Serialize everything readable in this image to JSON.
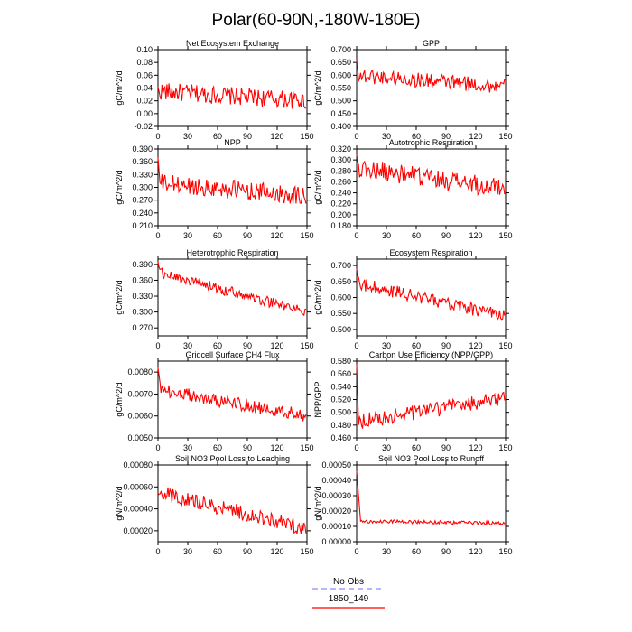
{
  "title": "Polar(60-90N,-180W-180E)",
  "legend": {
    "items": [
      {
        "label": "No Obs",
        "color": "#8c8cff",
        "style": "dashed"
      },
      {
        "label": "1850_149",
        "color": "#ff0000",
        "style": "solid"
      }
    ]
  },
  "chart_data": [
    {
      "type": "line",
      "title": "Net Ecosystem Exchange",
      "ylabel": "gC/m^2/d",
      "xlim": [
        0,
        150
      ],
      "ylim": [
        -0.02,
        0.1
      ],
      "xticks": [
        0,
        30,
        60,
        90,
        120,
        150
      ],
      "yticks": [
        "-0.02",
        "0.00",
        "0.02",
        "0.04",
        "0.06",
        "0.08",
        "0.10"
      ],
      "series": [
        {
          "name": "1850_149",
          "color": "#ff0000",
          "y0": 0.035,
          "trend": -0.0001,
          "noise": 0.014,
          "spike_start": 0,
          "spike_len": 0
        }
      ]
    },
    {
      "type": "line",
      "title": "GPP",
      "ylabel": "gC/m^2/d",
      "xlim": [
        0,
        150
      ],
      "ylim": [
        0.4,
        0.7
      ],
      "xticks": [
        0,
        30,
        60,
        90,
        120,
        150
      ],
      "yticks": [
        "0.400",
        "0.450",
        "0.500",
        "0.550",
        "0.600",
        "0.650",
        "0.700"
      ],
      "series": [
        {
          "name": "1850_149",
          "color": "#ff0000",
          "y0": 0.6,
          "trend": -0.0003,
          "noise": 0.03,
          "spike_start": 0.66,
          "spike_len": 2
        }
      ]
    },
    {
      "type": "line",
      "title": "NPP",
      "ylabel": "gC/m^2/d",
      "xlim": [
        0,
        150
      ],
      "ylim": [
        0.21,
        0.39
      ],
      "xticks": [
        0,
        30,
        60,
        90,
        120,
        150
      ],
      "yticks": [
        "0.210",
        "0.240",
        "0.270",
        "0.300",
        "0.330",
        "0.360",
        "0.390"
      ],
      "series": [
        {
          "name": "1850_149",
          "color": "#ff0000",
          "y0": 0.31,
          "trend": -0.0002,
          "noise": 0.022,
          "spike_start": 0.37,
          "spike_len": 2
        }
      ]
    },
    {
      "type": "line",
      "title": "Autotrophic Respiration",
      "ylabel": "gC/m^2/d",
      "xlim": [
        0,
        150
      ],
      "ylim": [
        0.18,
        0.32
      ],
      "xticks": [
        0,
        30,
        60,
        90,
        120,
        150
      ],
      "yticks": [
        "0.180",
        "0.200",
        "0.220",
        "0.240",
        "0.260",
        "0.280",
        "0.300",
        "0.320"
      ],
      "series": [
        {
          "name": "1850_149",
          "color": "#ff0000",
          "y0": 0.285,
          "trend": -0.00025,
          "noise": 0.018,
          "spike_start": 0.31,
          "spike_len": 2
        }
      ]
    },
    {
      "type": "line",
      "title": "Heterotrophic Respiration",
      "ylabel": "gC/m^2/d",
      "xlim": [
        0,
        150
      ],
      "ylim": [
        0.255,
        0.4
      ],
      "xticks": [
        0,
        30,
        60,
        90,
        120,
        150
      ],
      "yticks": [
        "0.270",
        "0.300",
        "0.330",
        "0.360",
        "0.390"
      ],
      "series": [
        {
          "name": "1850_149",
          "color": "#ff0000",
          "y0": 0.375,
          "trend": -0.0005,
          "noise": 0.01,
          "spike_start": 0.395,
          "spike_len": 2
        }
      ]
    },
    {
      "type": "line",
      "title": "Ecosystem Respiration",
      "ylabel": "gC/m^2/d",
      "xlim": [
        0,
        150
      ],
      "ylim": [
        0.48,
        0.72
      ],
      "xticks": [
        0,
        30,
        60,
        90,
        120,
        150
      ],
      "yticks": [
        "0.500",
        "0.550",
        "0.600",
        "0.650",
        "0.700"
      ],
      "series": [
        {
          "name": "1850_149",
          "color": "#ff0000",
          "y0": 0.645,
          "trend": -0.0007,
          "noise": 0.02,
          "spike_start": 0.69,
          "spike_len": 2
        }
      ]
    },
    {
      "type": "line",
      "title": "Gridcell Surface CH4 Flux",
      "ylabel": "gC/m^2/d",
      "xlim": [
        0,
        150
      ],
      "ylim": [
        0.005,
        0.0085
      ],
      "xticks": [
        0,
        30,
        60,
        90,
        120,
        150
      ],
      "yticks": [
        "0.0050",
        "0.0060",
        "0.0070",
        "0.0080"
      ],
      "series": [
        {
          "name": "1850_149",
          "color": "#ff0000",
          "y0": 0.0072,
          "trend": -8e-06,
          "noise": 0.0003,
          "spike_start": 0.0082,
          "spike_len": 3
        }
      ]
    },
    {
      "type": "line",
      "title": "Carbon Use Efficiency (NPP/GPP)",
      "ylabel": "NPP/GPP",
      "xlim": [
        0,
        150
      ],
      "ylim": [
        0.46,
        0.58
      ],
      "xticks": [
        0,
        30,
        60,
        90,
        120,
        150
      ],
      "yticks": [
        "0.460",
        "0.480",
        "0.500",
        "0.520",
        "0.540",
        "0.560",
        "0.580"
      ],
      "series": [
        {
          "name": "1850_149",
          "color": "#ff0000",
          "y0": 0.485,
          "trend": 0.00025,
          "noise": 0.012,
          "spike_start": 0.575,
          "spike_len": 2
        }
      ]
    },
    {
      "type": "line",
      "title": "Soil NO3 Pool Loss to Leaching",
      "ylabel": "gN/m^2/d",
      "xlim": [
        0,
        150
      ],
      "ylim": [
        0.0001,
        0.0008
      ],
      "xticks": [
        0,
        30,
        60,
        90,
        120,
        150
      ],
      "yticks": [
        "0.00020",
        "0.00040",
        "0.00060",
        "0.00080"
      ],
      "series": [
        {
          "name": "1850_149",
          "color": "#ff0000",
          "y0": 0.00055,
          "trend": -2.2e-06,
          "noise": 7e-05,
          "spike_start": 0.00052,
          "spike_len": 2
        }
      ]
    },
    {
      "type": "line",
      "title": "Soil NO3 Pool Loss to Runoff",
      "ylabel": "gN/m^2/d",
      "xlim": [
        0,
        150
      ],
      "ylim": [
        0.0,
        0.0005
      ],
      "xticks": [
        0,
        30,
        60,
        90,
        120,
        150
      ],
      "yticks": [
        "0.00000",
        "0.00010",
        "0.00020",
        "0.00030",
        "0.00040",
        "0.00050"
      ],
      "series": [
        {
          "name": "1850_149",
          "color": "#ff0000",
          "y0": 0.000135,
          "trend": -1e-07,
          "noise": 1.2e-05,
          "spike_start": 0.00046,
          "spike_len": 4
        }
      ]
    }
  ]
}
